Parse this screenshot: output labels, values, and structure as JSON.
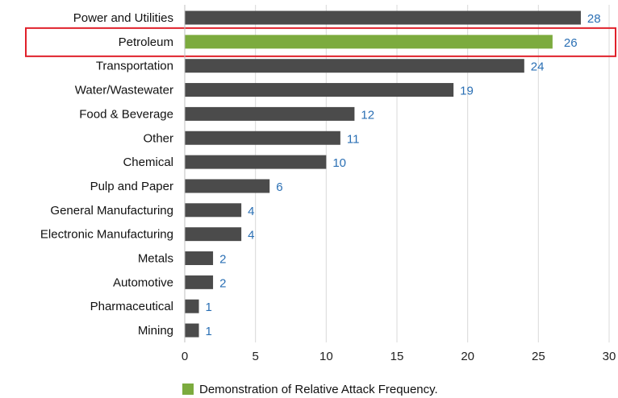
{
  "chart_data": {
    "type": "bar",
    "orientation": "horizontal",
    "categories": [
      "Power and Utilities",
      "Petroleum",
      "Transportation",
      "Water/Wastewater",
      "Food & Beverage",
      "Other",
      "Chemical",
      "Pulp and Paper",
      "General Manufacturing",
      "Electronic Manufacturing",
      "Metals",
      "Automotive",
      "Pharmaceutical",
      "Mining"
    ],
    "values": [
      28,
      26,
      24,
      19,
      12,
      11,
      10,
      6,
      4,
      4,
      2,
      2,
      1,
      1
    ],
    "highlighted_category": "Petroleum",
    "xlim": [
      0,
      30
    ],
    "xticks": [
      0,
      5,
      10,
      15,
      20,
      25,
      30
    ],
    "grid": "vertical",
    "legend": {
      "label": "Demonstration of Relative Attack Frequency.",
      "position": "bottom"
    },
    "colors": {
      "bar": "#4b4b4b",
      "highlight": "#7cab3e",
      "highlight_box": "#e0202a",
      "value_label": "#2a6fb4",
      "grid": "#d9d9d9"
    }
  }
}
